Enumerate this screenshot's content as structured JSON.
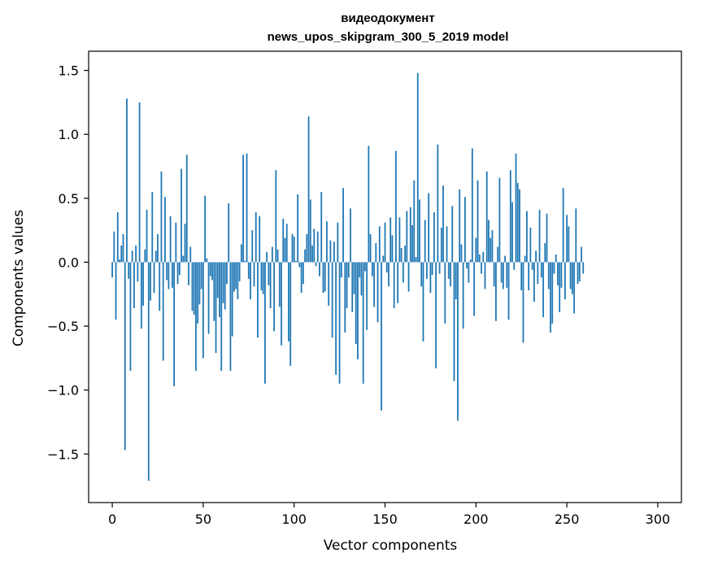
{
  "chart_data": {
    "type": "bar",
    "title": "видеодокумент",
    "subtitle": "news_upos_skipgram_300_5_2019 model",
    "xlabel": "Vector components",
    "ylabel": "Components values",
    "xlim": [
      -13,
      313
    ],
    "ylim": [
      -1.88,
      1.65
    ],
    "xticks": [
      0,
      50,
      100,
      150,
      200,
      250,
      300
    ],
    "yticks": [
      -1.5,
      -1.0,
      -0.5,
      0.0,
      0.5,
      1.0,
      1.5
    ],
    "ytick_labels": [
      "−1.5",
      "−1.0",
      "−0.5",
      "0.0",
      "0.5",
      "1.0",
      "1.5"
    ],
    "bar_color": "#1f77b4",
    "series": [
      {
        "name": "components",
        "values": [
          -0.12,
          0.24,
          -0.45,
          0.39,
          0.02,
          0.13,
          0.22,
          -1.47,
          1.28,
          -0.13,
          -0.85,
          0.09,
          -0.36,
          0.13,
          -0.15,
          1.25,
          -0.52,
          -0.34,
          0.1,
          0.41,
          -1.71,
          -0.3,
          0.55,
          -0.24,
          0.09,
          0.22,
          -0.38,
          0.71,
          -0.77,
          0.51,
          -0.14,
          -0.21,
          0.36,
          -0.2,
          -0.97,
          0.31,
          -0.17,
          -0.1,
          0.73,
          0.05,
          0.3,
          0.84,
          -0.18,
          0.12,
          -0.38,
          -0.41,
          -0.85,
          -0.48,
          -0.33,
          -0.21,
          -0.75,
          0.52,
          0.03,
          -0.56,
          -0.11,
          -0.14,
          -0.46,
          -0.71,
          -0.28,
          -0.43,
          -0.85,
          -0.32,
          -0.37,
          -0.17,
          0.46,
          -0.85,
          -0.58,
          -0.23,
          -0.21,
          -0.29,
          -0.15,
          0.14,
          0.84,
          0.01,
          0.85,
          -0.13,
          -0.29,
          0.25,
          -0.19,
          0.39,
          -0.59,
          0.36,
          -0.22,
          -0.25,
          -0.95,
          0.08,
          -0.18,
          -0.36,
          0.12,
          -0.54,
          0.72,
          0.1,
          -0.35,
          -0.65,
          0.34,
          0.19,
          0.3,
          -0.62,
          -0.81,
          0.22,
          0.2,
          0.01,
          0.53,
          -0.04,
          -0.24,
          -0.17,
          0.1,
          0.22,
          1.14,
          0.49,
          0.13,
          0.26,
          -0.03,
          0.24,
          -0.11,
          0.55,
          -0.24,
          -0.23,
          0.32,
          -0.34,
          0.17,
          -0.59,
          0.16,
          -0.88,
          0.31,
          -0.95,
          -0.12,
          0.58,
          -0.55,
          -0.36,
          -0.12,
          0.42,
          -0.39,
          -0.25,
          -0.64,
          -0.76,
          -0.12,
          -0.26,
          -0.95,
          -0.07,
          -0.53,
          0.91,
          0.22,
          -0.11,
          -0.35,
          0.15,
          -0.47,
          0.28,
          -1.16,
          0.05,
          0.31,
          -0.08,
          -0.19,
          0.35,
          0.21,
          -0.36,
          0.87,
          -0.32,
          0.35,
          0.11,
          -0.16,
          0.13,
          0.4,
          -0.23,
          0.43,
          0.29,
          0.64,
          0.04,
          1.48,
          0.49,
          -0.19,
          -0.62,
          0.33,
          -0.13,
          0.54,
          -0.24,
          -0.1,
          0.39,
          -0.83,
          0.92,
          -0.09,
          0.27,
          0.6,
          -0.48,
          0.28,
          -0.13,
          -0.19,
          0.44,
          -0.93,
          -0.29,
          -1.24,
          0.57,
          0.14,
          -0.52,
          0.51,
          -0.05,
          -0.16,
          0.02,
          0.89,
          -0.42,
          0.19,
          0.64,
          0.06,
          -0.09,
          0.08,
          -0.21,
          0.71,
          0.33,
          0.19,
          0.25,
          -0.19,
          -0.46,
          0.12,
          0.66,
          -0.16,
          -0.21,
          0.05,
          -0.2,
          -0.45,
          0.72,
          0.47,
          -0.06,
          0.85,
          0.62,
          0.57,
          -0.22,
          -0.63,
          0.05,
          0.4,
          -0.22,
          0.27,
          -0.06,
          -0.31,
          0.09,
          -0.17,
          0.41,
          -0.12,
          -0.43,
          0.15,
          0.38,
          -0.21,
          -0.55,
          -0.48,
          -0.09,
          0.06,
          -0.18,
          -0.39,
          -0.2,
          0.58,
          -0.29,
          0.37,
          0.28,
          -0.21,
          -0.25,
          -0.4,
          0.42,
          -0.17,
          -0.15,
          0.12,
          -0.09
        ]
      }
    ]
  }
}
